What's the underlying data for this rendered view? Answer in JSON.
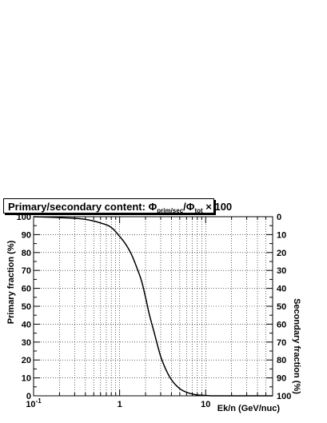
{
  "chart_data": {
    "type": "line",
    "title": {
      "prefix": "Primary/secondary content: ",
      "phi": "Φ",
      "num_sub": "prim/sec",
      "slash": "/",
      "den_sub": "tot",
      "suffix": " × 100"
    },
    "xlabel": "Ek/n (GeV/nuc)",
    "ylabel_left": "Primary fraction (%)",
    "ylabel_right": "Secondary fraction (%)",
    "x_scale": "log",
    "xlim": [
      0.1,
      60
    ],
    "ylim": [
      0,
      100
    ],
    "x_ticks": [
      {
        "value": 0.1,
        "base": "10",
        "exp": "-1"
      },
      {
        "value": 1,
        "base": "1",
        "exp": ""
      },
      {
        "value": 10,
        "base": "10",
        "exp": ""
      }
    ],
    "y_ticks_left": [
      "0",
      "10",
      "20",
      "30",
      "40",
      "50",
      "60",
      "70",
      "80",
      "90",
      "100"
    ],
    "y_ticks_right": [
      "100",
      "90",
      "80",
      "70",
      "60",
      "50",
      "40",
      "30",
      "20",
      "10",
      "0"
    ],
    "grid": true,
    "series": [
      {
        "x": [
          0.1,
          0.2,
          0.4,
          0.6,
          0.8,
          1.0,
          1.2,
          1.4,
          1.6,
          1.8,
          2.0,
          2.2,
          2.5,
          2.8,
          3.0,
          3.5,
          4.0,
          5.0,
          6.0,
          7.0,
          8.0,
          10.0,
          12.0,
          15.0,
          60.0
        ],
        "y": [
          100,
          99.5,
          98.5,
          96.5,
          94,
          89,
          84,
          78,
          71,
          64,
          55,
          46,
          36,
          27,
          22,
          14,
          9,
          4,
          2,
          1,
          0.5,
          0.2,
          0,
          0,
          0
        ],
        "color": "#000000"
      }
    ]
  }
}
